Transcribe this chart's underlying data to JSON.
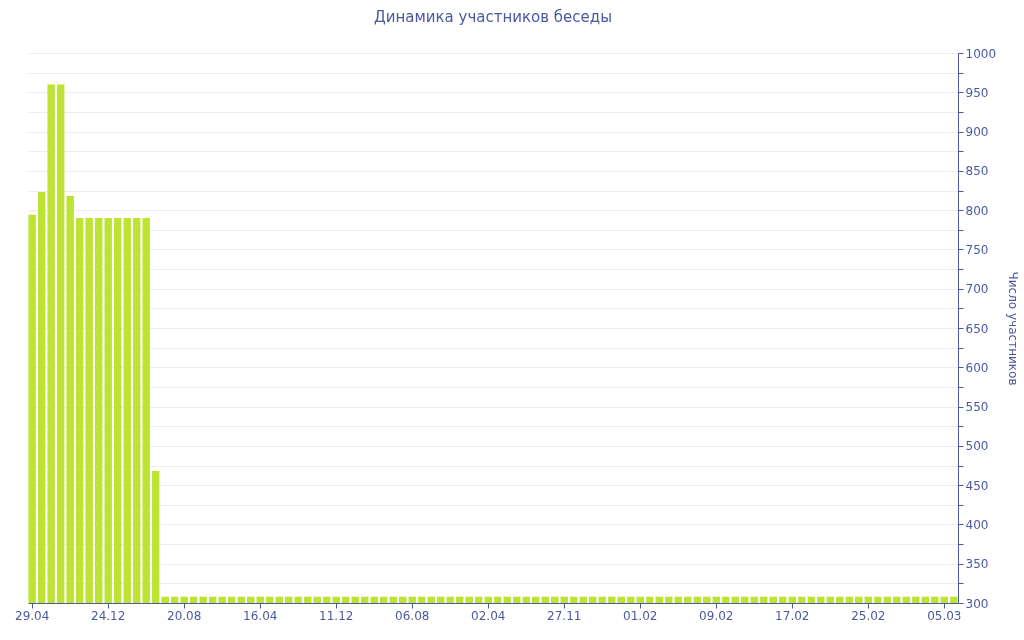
{
  "chart_data": {
    "type": "bar",
    "title": "Динамика участников беседы",
    "ylabel": "Число участников",
    "categories": [
      "29.04",
      null,
      null,
      null,
      null,
      null,
      null,
      null,
      "24.12",
      null,
      null,
      null,
      null,
      null,
      null,
      null,
      "20.08",
      null,
      null,
      null,
      null,
      null,
      null,
      null,
      "16.04",
      null,
      null,
      null,
      null,
      null,
      null,
      null,
      "11.12",
      null,
      null,
      null,
      null,
      null,
      null,
      null,
      "06.08",
      null,
      null,
      null,
      null,
      null,
      null,
      null,
      "02.04",
      null,
      null,
      null,
      null,
      null,
      null,
      null,
      "27.11",
      null,
      null,
      null,
      null,
      null,
      null,
      null,
      "01.02",
      null,
      null,
      null,
      null,
      null,
      null,
      null,
      "09.02",
      null,
      null,
      null,
      null,
      null,
      null,
      null,
      "17.02",
      null,
      null,
      null,
      null,
      null,
      null,
      null,
      "25.02",
      null,
      null,
      null,
      null,
      null,
      null,
      null,
      "05.03",
      null
    ],
    "values": [
      794,
      823,
      960,
      960,
      818,
      790,
      790,
      790,
      790,
      790,
      790,
      790,
      790,
      468,
      308,
      308,
      308,
      308,
      308,
      308,
      308,
      308,
      308,
      308,
      308,
      308,
      308,
      308,
      308,
      308,
      308,
      308,
      308,
      308,
      308,
      308,
      308,
      308,
      308,
      308,
      308,
      308,
      308,
      308,
      308,
      308,
      308,
      308,
      308,
      308,
      308,
      308,
      308,
      308,
      308,
      308,
      308,
      308,
      308,
      308,
      308,
      308,
      308,
      308,
      308,
      308,
      308,
      308,
      308,
      308,
      308,
      308,
      308,
      308,
      308,
      308,
      308,
      308,
      308,
      308,
      308,
      308,
      308,
      308,
      308,
      308,
      308,
      308,
      308,
      308,
      308,
      308,
      308,
      308,
      308,
      308,
      308,
      308
    ],
    "color": "#bde333",
    "ylim": [
      300,
      1000
    ],
    "yticks": [
      300,
      {
        "value": 325,
        "label": null
      },
      350,
      {
        "value": 375,
        "label": null
      },
      400,
      {
        "value": 425,
        "label": null
      },
      450,
      {
        "value": 475,
        "label": null
      },
      500,
      {
        "value": 525,
        "label": null
      },
      550,
      {
        "value": 575,
        "label": null
      },
      600,
      {
        "value": 625,
        "label": null
      },
      650,
      {
        "value": 675,
        "label": null
      },
      700,
      {
        "value": 725,
        "label": null
      },
      750,
      {
        "value": 775,
        "label": null
      },
      800,
      {
        "value": 825,
        "label": null
      },
      850,
      {
        "value": 875,
        "label": null
      },
      900,
      {
        "value": 925,
        "label": null
      },
      950,
      {
        "value": 975,
        "label": null
      },
      1000
    ],
    "grid": true
  }
}
